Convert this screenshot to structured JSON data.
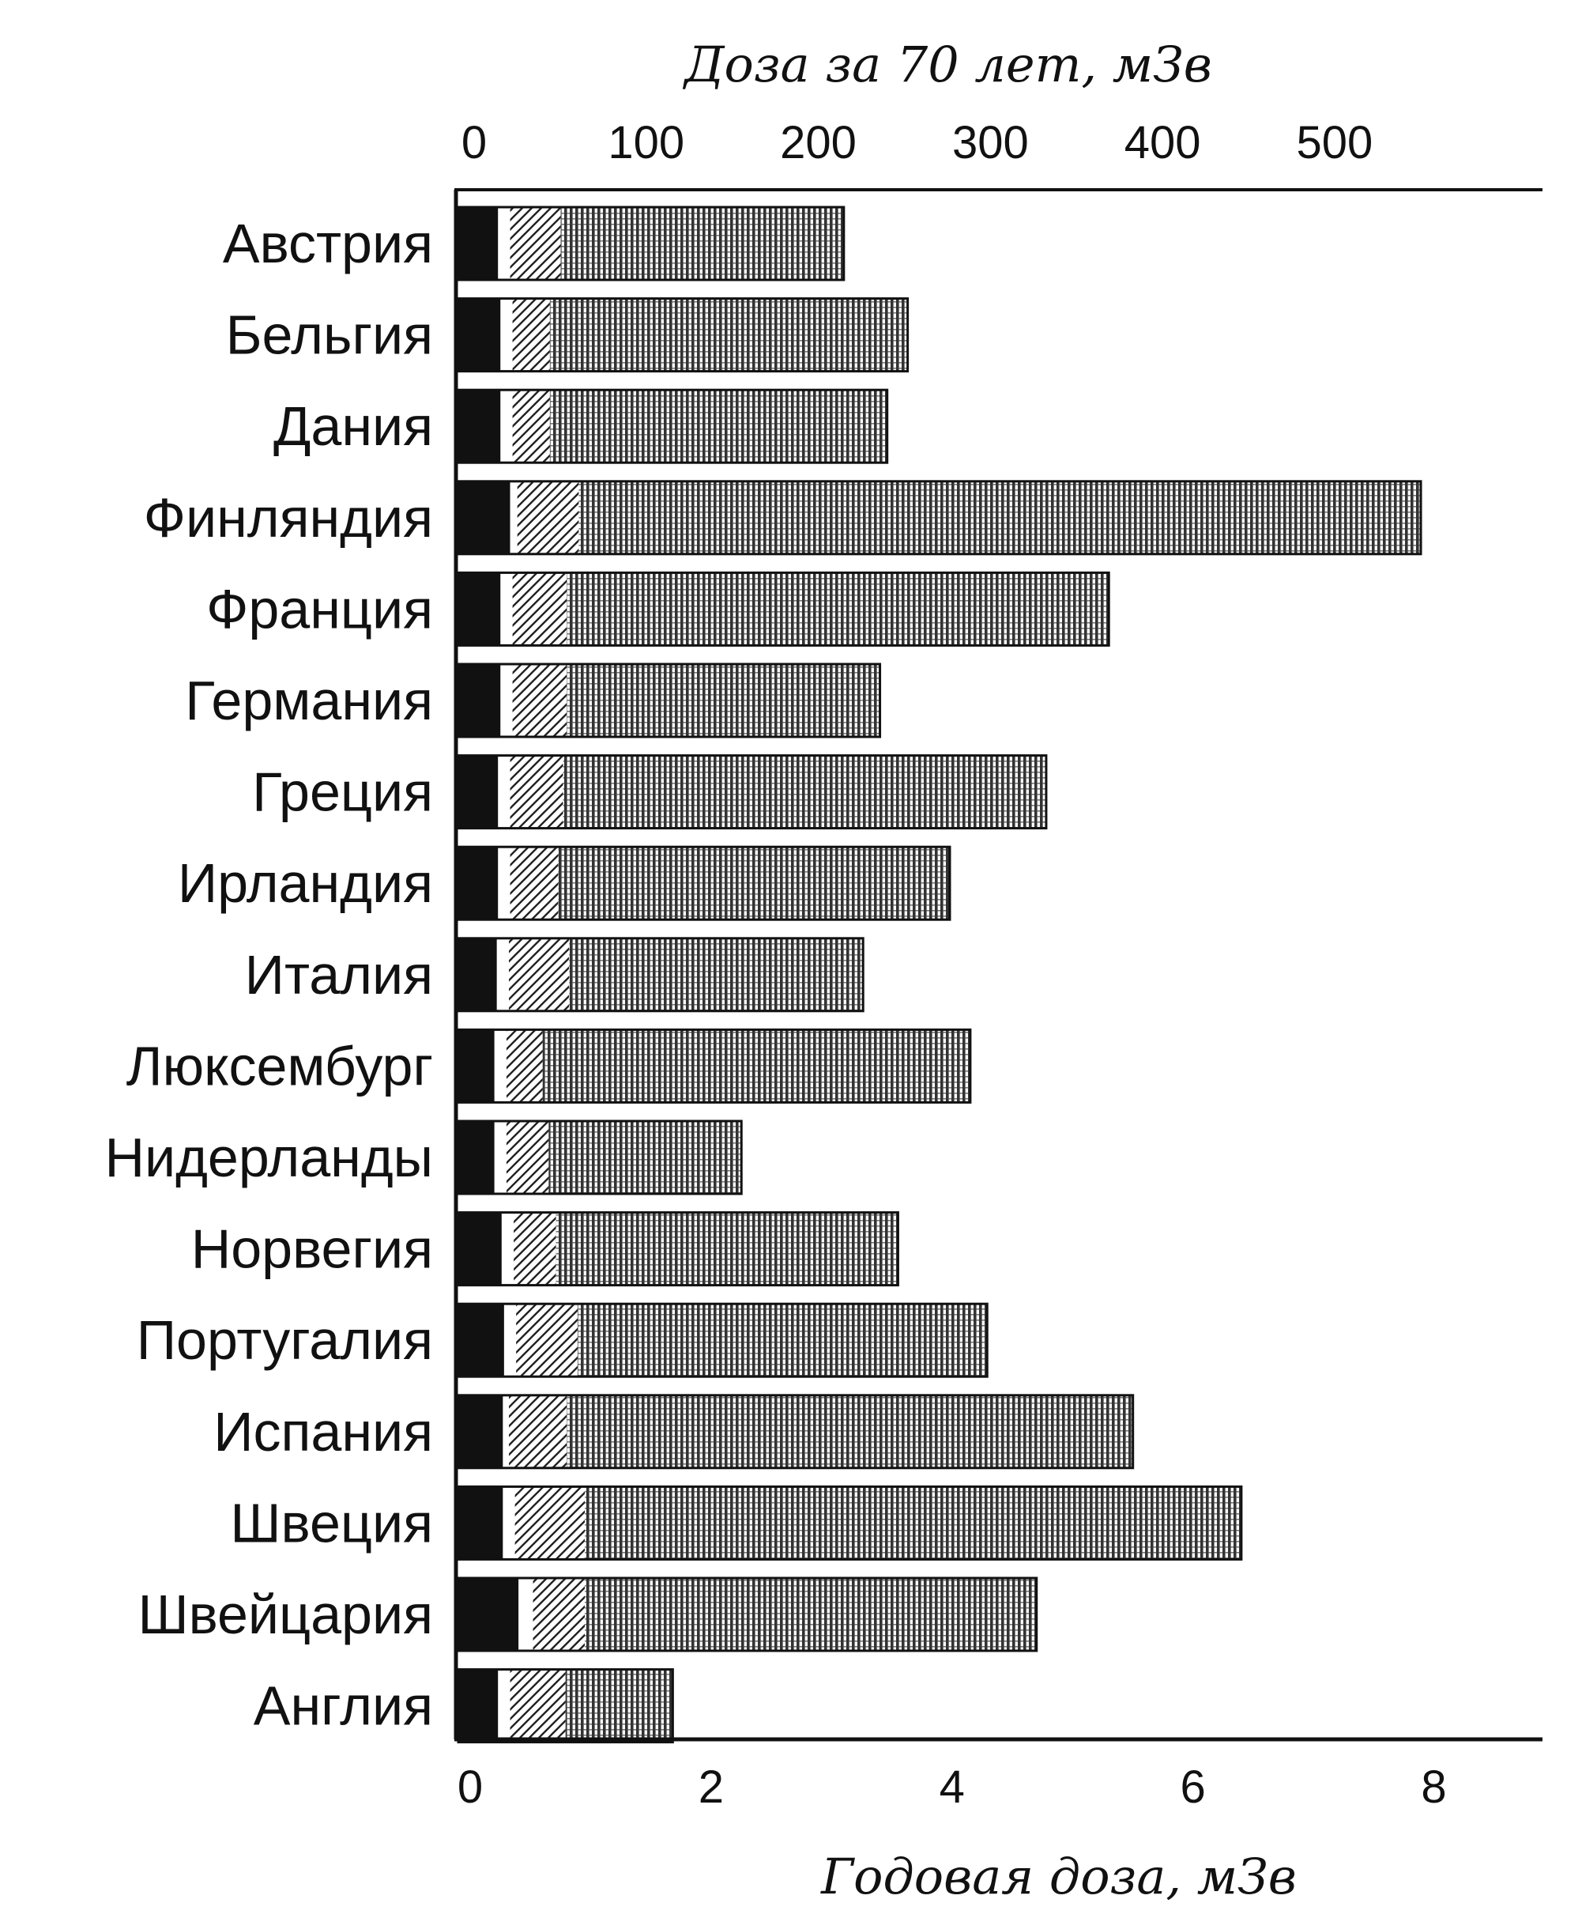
{
  "chart_data": {
    "type": "bar",
    "stacked": true,
    "orientation": "horizontal",
    "title": "",
    "xlabel": "Годовая доза, мЗв",
    "x2label": "Доза за 70 лет, мЗв",
    "ylabel": "",
    "xlim": [
      0,
      9
    ],
    "x2lim": [
      0,
      630
    ],
    "xticks": [
      "0",
      "2",
      "4",
      "6",
      "8"
    ],
    "x2ticks": [
      "0",
      "100",
      "200",
      "300",
      "400",
      "500"
    ],
    "categories": [
      "Австрия",
      "Бельгия",
      "Дания",
      "Финляндия",
      "Франция",
      "Германия",
      "Греция",
      "Ирландия",
      "Италия",
      "Люксембург",
      "Нидерланды",
      "Норвегия",
      "Португалия",
      "Испания",
      "Швеция",
      "Швейцария",
      "Англия"
    ],
    "series": [
      {
        "pattern": "solid-black",
        "values": [
          0.33,
          0.35,
          0.35,
          0.43,
          0.35,
          0.35,
          0.33,
          0.33,
          0.32,
          0.3,
          0.3,
          0.36,
          0.38,
          0.37,
          0.37,
          0.5,
          0.33
        ]
      },
      {
        "pattern": "white",
        "values": [
          0.1,
          0.1,
          0.1,
          0.06,
          0.1,
          0.1,
          0.1,
          0.1,
          0.1,
          0.1,
          0.1,
          0.1,
          0.1,
          0.05,
          0.1,
          0.12,
          0.1
        ]
      },
      {
        "pattern": "diagonal-hatch",
        "values": [
          0.42,
          0.31,
          0.31,
          0.51,
          0.45,
          0.45,
          0.44,
          0.4,
          0.5,
          0.3,
          0.35,
          0.35,
          0.51,
          0.48,
          0.58,
          0.43,
          0.46
        ]
      },
      {
        "pattern": "dense-vertical",
        "values": [
          2.35,
          2.97,
          2.8,
          6.99,
          4.5,
          2.6,
          4.01,
          3.25,
          2.44,
          3.55,
          1.6,
          2.84,
          3.4,
          4.7,
          5.45,
          3.75,
          0.89
        ]
      }
    ]
  }
}
